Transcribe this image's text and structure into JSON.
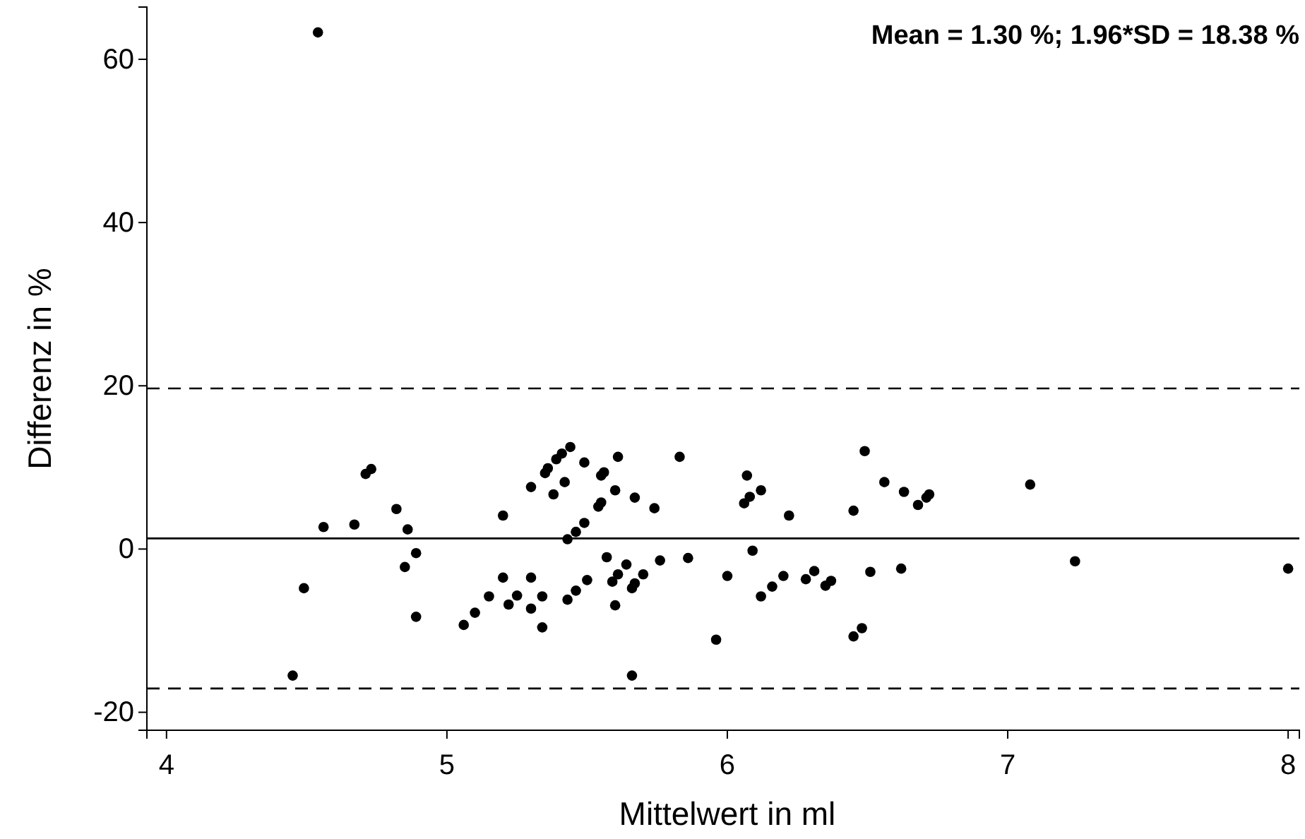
{
  "chart_data": {
    "type": "scatter",
    "xlabel": "Mittelwert in ml",
    "ylabel": "Differenz in %",
    "annotations": [
      "Mean = 1.30 %; 1.96*SD = 18.38 %"
    ],
    "xlim": [
      3.93,
      8.04
    ],
    "xticks": [
      4,
      5,
      6,
      7,
      8
    ],
    "ylim": [
      -22.2,
      66.4
    ],
    "yticks": [
      -20,
      0,
      20,
      40,
      60
    ],
    "grid": false,
    "marker": "circle",
    "ref_lines": [
      {
        "axis": "y",
        "value": 1.3,
        "line_style": "solid",
        "color": "#000000"
      },
      {
        "axis": "y",
        "value": 19.68,
        "line_style": "dashed",
        "color": "#000000"
      },
      {
        "axis": "y",
        "value": -17.08,
        "line_style": "dashed",
        "color": "#000000"
      }
    ],
    "series": [
      {
        "color": "#000000",
        "x": [
          4.54,
          4.45,
          4.49,
          4.56,
          4.67,
          4.71,
          4.73,
          4.82,
          4.86,
          4.89,
          4.85,
          4.89,
          5.06,
          5.1,
          5.15,
          5.2,
          5.2,
          5.22,
          5.25,
          5.3,
          5.3,
          5.3,
          5.34,
          5.34,
          5.35,
          5.36,
          5.39,
          5.41,
          5.44,
          5.38,
          5.42,
          5.43,
          5.46,
          5.49,
          5.43,
          5.46,
          5.5,
          5.49,
          5.55,
          5.56,
          5.54,
          5.55,
          5.6,
          5.61,
          5.57,
          5.59,
          5.61,
          5.64,
          5.6,
          5.66,
          5.67,
          5.7,
          5.67,
          5.74,
          5.76,
          5.66,
          5.83,
          5.86,
          6.0,
          5.96,
          6.07,
          6.06,
          6.08,
          6.12,
          6.09,
          6.12,
          6.16,
          6.2,
          6.22,
          6.28,
          6.31,
          6.35,
          6.37,
          6.45,
          6.49,
          6.45,
          6.48,
          6.51,
          6.56,
          6.62,
          6.63,
          6.68,
          6.71,
          6.72,
          7.08,
          7.24,
          8.0
        ],
        "values": [
          63.3,
          -15.5,
          -4.8,
          2.7,
          3.0,
          9.2,
          9.8,
          4.9,
          2.4,
          -0.5,
          -2.2,
          -8.3,
          -9.3,
          -7.8,
          -5.8,
          4.1,
          -3.5,
          -6.8,
          -5.7,
          7.6,
          -3.5,
          -7.3,
          -5.8,
          -9.6,
          9.3,
          9.9,
          11.0,
          11.7,
          12.5,
          6.7,
          8.2,
          1.2,
          2.1,
          3.2,
          -6.2,
          -5.1,
          -3.8,
          10.6,
          9.0,
          9.4,
          5.2,
          5.7,
          7.2,
          11.3,
          -1.0,
          -4.0,
          -3.1,
          -1.9,
          -6.9,
          -4.8,
          -4.2,
          -3.1,
          6.3,
          5.0,
          -1.4,
          -15.5,
          11.3,
          -1.1,
          -3.3,
          -11.1,
          9.0,
          5.6,
          6.4,
          7.2,
          -0.2,
          -5.8,
          -4.6,
          -3.3,
          4.1,
          -3.7,
          -2.7,
          -4.5,
          -3.9,
          4.7,
          12.0,
          -10.7,
          -9.7,
          -2.8,
          8.2,
          -2.4,
          7.0,
          5.4,
          6.3,
          6.7,
          7.9,
          -1.5,
          -2.4
        ]
      }
    ]
  }
}
